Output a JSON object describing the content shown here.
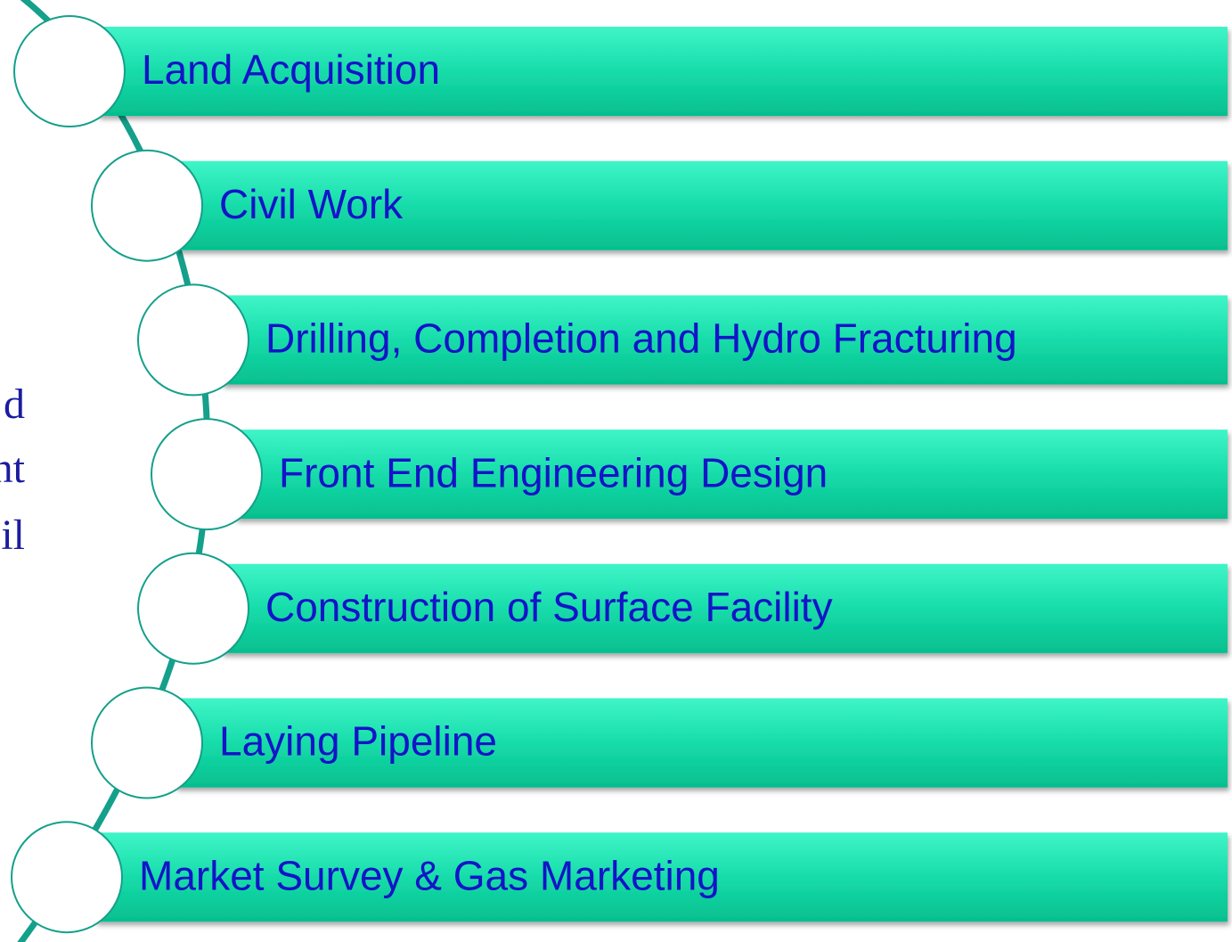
{
  "side_text": [
    "d",
    "nt",
    "il"
  ],
  "items": [
    {
      "label": "Land Acquisition"
    },
    {
      "label": "Civil Work"
    },
    {
      "label": "Drilling, Completion and Hydro Fracturing"
    },
    {
      "label": "Front End Engineering Design"
    },
    {
      "label": "Construction of Surface Facility"
    },
    {
      "label": "Laying Pipeline"
    },
    {
      "label": "Market Survey & Gas Marketing"
    }
  ]
}
